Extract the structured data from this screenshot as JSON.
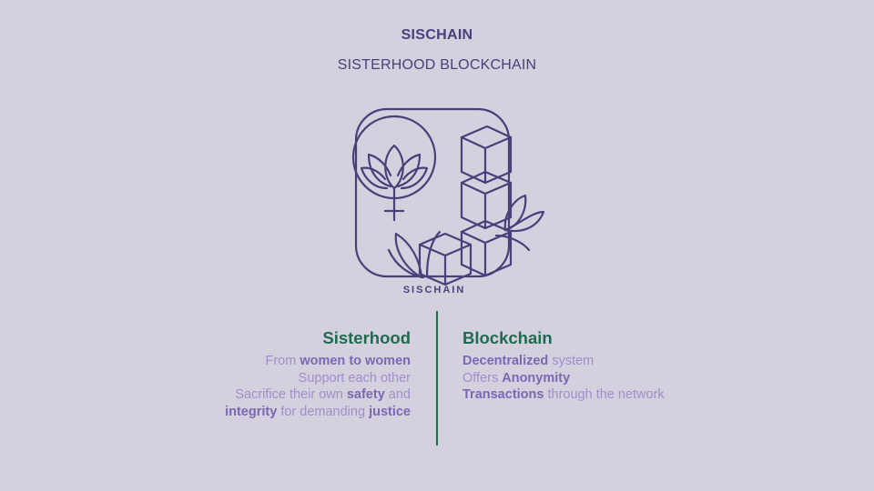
{
  "colors": {
    "background": "#d4d0de",
    "title": "#4b3f7a",
    "heading": "#1f6b4f",
    "body_text": "#9d8fcb",
    "emphasis": "#7b68b5",
    "logo_stroke": "#4b3f7a"
  },
  "header": {
    "title": "SISCHAIN",
    "subtitle": "SISTERHOOD BLOCKCHAIN"
  },
  "logo": {
    "wordmark": "SISCHAIN",
    "icons": [
      "lotus-icon",
      "venus-symbol-icon",
      "stacked-cubes-icon",
      "leaf-icon"
    ]
  },
  "sisterhood": {
    "heading": "Sisterhood",
    "line1": {
      "a": "From ",
      "b": "women to women"
    },
    "line2": {
      "a": "Support each other"
    },
    "line3": {
      "a": "Sacrifice their own ",
      "b": "safety",
      "c": " and"
    },
    "line4": {
      "a": "integrity",
      "b": " for demanding ",
      "c": "justice"
    }
  },
  "blockchain": {
    "heading": "Blockchain",
    "line1": {
      "a": "Decentralized",
      "b": " system"
    },
    "line2": {
      "a": "Offers ",
      "b": "Anonymity"
    },
    "line3": {
      "a": "Transactions",
      "b": " through the network"
    }
  }
}
